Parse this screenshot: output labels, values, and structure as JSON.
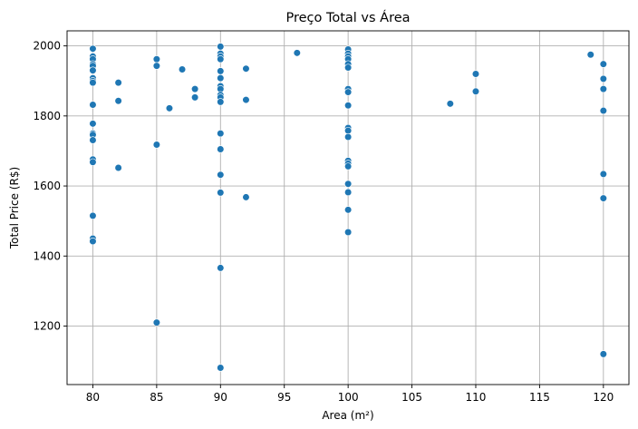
{
  "chart_data": {
    "type": "scatter",
    "title": "Preço Total vs Área",
    "xlabel": "Area (m²)",
    "ylabel": "Total Price (R$)",
    "xlim": [
      77.98,
      122.0
    ],
    "ylim": [
      1033,
      2043
    ],
    "x_ticks": [
      80,
      85,
      90,
      95,
      100,
      105,
      110,
      115,
      120
    ],
    "y_ticks": [
      1200,
      1400,
      1600,
      1800,
      2000
    ],
    "grid": true,
    "legend": "none",
    "marker_color": "#1f77b4",
    "points": [
      {
        "x": 80,
        "y": 1992
      },
      {
        "x": 80,
        "y": 1970
      },
      {
        "x": 80,
        "y": 1962
      },
      {
        "x": 80,
        "y": 1948
      },
      {
        "x": 80,
        "y": 1943
      },
      {
        "x": 80,
        "y": 1930
      },
      {
        "x": 80,
        "y": 1908
      },
      {
        "x": 80,
        "y": 1900
      },
      {
        "x": 80,
        "y": 1895
      },
      {
        "x": 80,
        "y": 1832
      },
      {
        "x": 80,
        "y": 1778
      },
      {
        "x": 80,
        "y": 1750
      },
      {
        "x": 80,
        "y": 1746
      },
      {
        "x": 80,
        "y": 1731
      },
      {
        "x": 80,
        "y": 1676
      },
      {
        "x": 80,
        "y": 1668
      },
      {
        "x": 80,
        "y": 1515
      },
      {
        "x": 80,
        "y": 1450
      },
      {
        "x": 80,
        "y": 1442
      },
      {
        "x": 82,
        "y": 1895
      },
      {
        "x": 82,
        "y": 1843
      },
      {
        "x": 82,
        "y": 1652
      },
      {
        "x": 85,
        "y": 1962
      },
      {
        "x": 85,
        "y": 1943
      },
      {
        "x": 85,
        "y": 1718
      },
      {
        "x": 85,
        "y": 1210
      },
      {
        "x": 86,
        "y": 1822
      },
      {
        "x": 87,
        "y": 1933
      },
      {
        "x": 88,
        "y": 1877
      },
      {
        "x": 88,
        "y": 1853
      },
      {
        "x": 90,
        "y": 1998
      },
      {
        "x": 90,
        "y": 1978
      },
      {
        "x": 90,
        "y": 1970
      },
      {
        "x": 90,
        "y": 1962
      },
      {
        "x": 90,
        "y": 1928
      },
      {
        "x": 90,
        "y": 1908
      },
      {
        "x": 90,
        "y": 1885
      },
      {
        "x": 90,
        "y": 1877
      },
      {
        "x": 90,
        "y": 1860
      },
      {
        "x": 90,
        "y": 1853
      },
      {
        "x": 90,
        "y": 1840
      },
      {
        "x": 90,
        "y": 1750
      },
      {
        "x": 90,
        "y": 1705
      },
      {
        "x": 90,
        "y": 1632
      },
      {
        "x": 90,
        "y": 1581
      },
      {
        "x": 90,
        "y": 1366
      },
      {
        "x": 90,
        "y": 1081
      },
      {
        "x": 92,
        "y": 1935
      },
      {
        "x": 92,
        "y": 1846
      },
      {
        "x": 92,
        "y": 1568
      },
      {
        "x": 96,
        "y": 1980
      },
      {
        "x": 100,
        "y": 1990
      },
      {
        "x": 100,
        "y": 1978
      },
      {
        "x": 100,
        "y": 1970
      },
      {
        "x": 100,
        "y": 1962
      },
      {
        "x": 100,
        "y": 1948
      },
      {
        "x": 100,
        "y": 1938
      },
      {
        "x": 100,
        "y": 1877
      },
      {
        "x": 100,
        "y": 1868
      },
      {
        "x": 100,
        "y": 1830
      },
      {
        "x": 100,
        "y": 1766
      },
      {
        "x": 100,
        "y": 1758
      },
      {
        "x": 100,
        "y": 1740
      },
      {
        "x": 100,
        "y": 1672
      },
      {
        "x": 100,
        "y": 1664
      },
      {
        "x": 100,
        "y": 1656
      },
      {
        "x": 100,
        "y": 1606
      },
      {
        "x": 100,
        "y": 1582
      },
      {
        "x": 100,
        "y": 1532
      },
      {
        "x": 100,
        "y": 1468
      },
      {
        "x": 108,
        "y": 1835
      },
      {
        "x": 110,
        "y": 1920
      },
      {
        "x": 110,
        "y": 1870
      },
      {
        "x": 119,
        "y": 1975
      },
      {
        "x": 120,
        "y": 1948
      },
      {
        "x": 120,
        "y": 1906
      },
      {
        "x": 120,
        "y": 1877
      },
      {
        "x": 120,
        "y": 1815
      },
      {
        "x": 120,
        "y": 1634
      },
      {
        "x": 120,
        "y": 1565
      },
      {
        "x": 120,
        "y": 1120
      }
    ]
  }
}
